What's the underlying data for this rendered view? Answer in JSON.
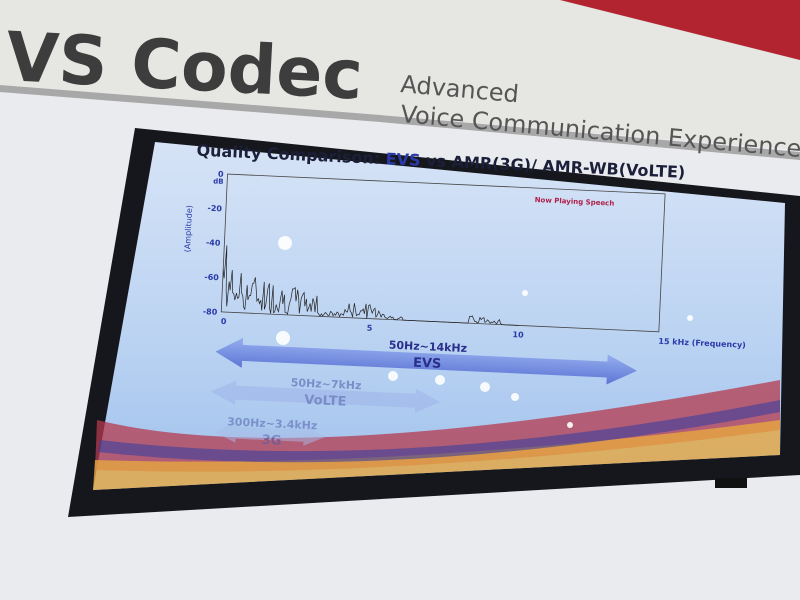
{
  "banner": {
    "product": "VS Codec",
    "tagline_line1": "Advanced",
    "tagline_line2": "Voice Communication Experience"
  },
  "screen": {
    "title_prefix": "Quality Comparison: ",
    "title_highlight": "EVS",
    "title_suffix": " vs AMR(3G)/ AMR-WB(VoLTE)",
    "legend": "Now Playing Speech",
    "y_axis_label": "(Amplitude)",
    "y_unit": "dB",
    "y_ticks": [
      "0",
      "-20",
      "-40",
      "-60",
      "-80"
    ],
    "x_ticks": [
      "0",
      "5",
      "10",
      "15 kHz (Frequency)"
    ],
    "bands": [
      {
        "range": "50Hz~14kHz",
        "name": "EVS"
      },
      {
        "range": "50Hz~7kHz",
        "name": "VoLTE"
      },
      {
        "range": "300Hz~3.4kHz",
        "name": "3G"
      }
    ]
  },
  "colors": {
    "accent": "#2a3aa8",
    "legend": "#b0204a",
    "screen_bg": "#c9dcf4",
    "bezel": "#15171c"
  }
}
